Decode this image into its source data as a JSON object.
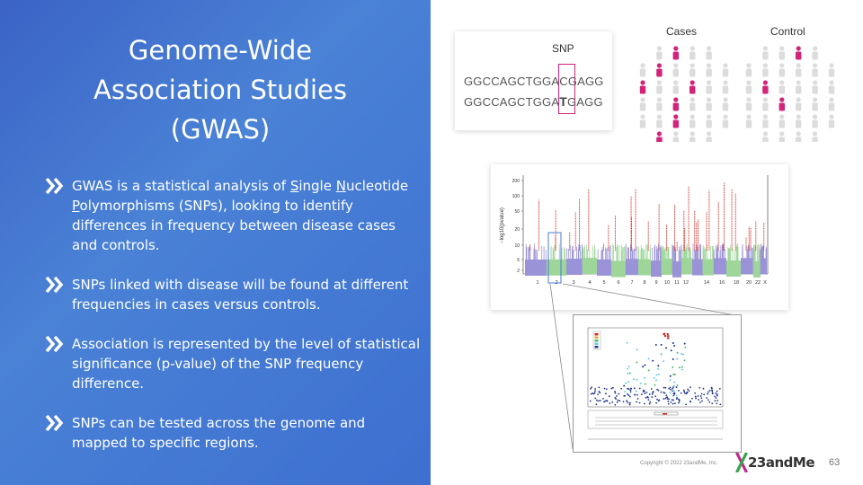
{
  "slide": {
    "title_lines": [
      "Genome-Wide",
      "Association Studies",
      "(GWAS)"
    ],
    "bullets": [
      {
        "parts": [
          "GWAS is a statistical analysis of ",
          "S",
          "ingle ",
          "N",
          "ucleotide ",
          "P",
          "olymorphisms (SNPs), looking to identify differences in frequency between disease cases and controls."
        ]
      },
      {
        "text": "SNPs linked with disease will be found at different frequencies in cases versus controls."
      },
      {
        "text": "Association is represented by the level of statistical significance (p-value) of the SNP frequency difference."
      },
      {
        "text": "SNPs can be tested across the genome and mapped to specific regions."
      }
    ],
    "page_number": "63",
    "copyright": "Copyright © 2022 23andMe, Inc.",
    "logo_text": "23andMe"
  },
  "snp_panel": {
    "label": "SNP",
    "seq1": {
      "before": "GGCCAGCTGGA",
      "snp": "C",
      "after": "GAGG"
    },
    "seq2": {
      "before": "GGCCAGCTGGA",
      "snp": "T",
      "after": "GAGG"
    }
  },
  "groups": {
    "cases_label": "Cases",
    "control_label": "Control"
  },
  "manhattan": {
    "ylabel": "−log10(pvalue)",
    "ytick_labels": [
      "200",
      "100",
      "50",
      "20",
      "10",
      "5",
      "2"
    ],
    "xtick_labels": [
      "1",
      "2",
      "3",
      "4",
      "5",
      "6",
      "7",
      "8",
      "9",
      "10",
      "11",
      "12",
      "14",
      "16",
      "18",
      "20",
      "22",
      "X"
    ]
  },
  "colors": {
    "accent": "#d3237a",
    "gradient_start": "#3b63c6",
    "gradient_end": "#3d6fd0",
    "purple": "#9b93d8",
    "green": "#9ed69a",
    "red": "#d7261c"
  }
}
